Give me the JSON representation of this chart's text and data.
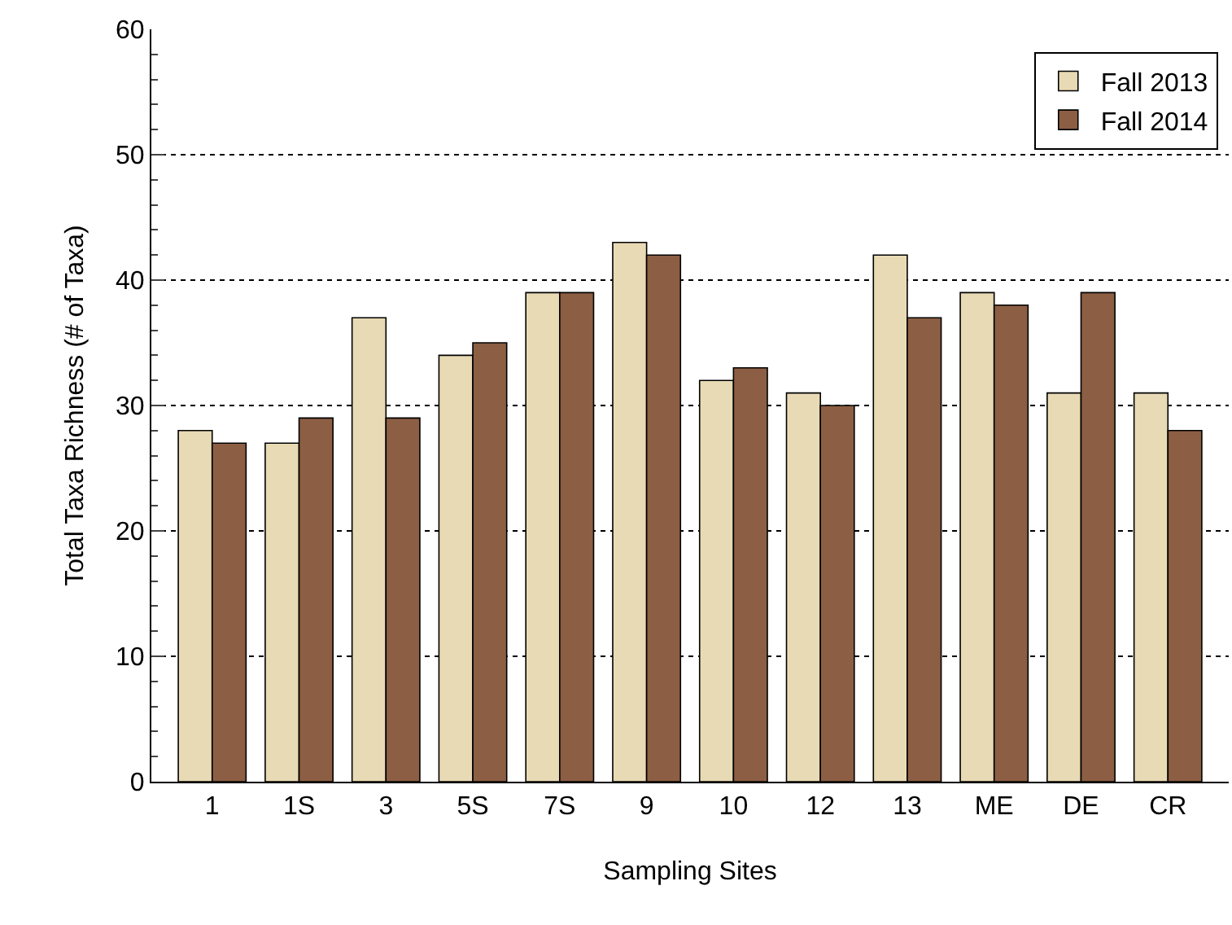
{
  "chart_data": {
    "type": "bar",
    "xlabel": "Sampling Sites",
    "ylabel": "Total Taxa Richness (# of Taxa)",
    "categories": [
      "1",
      "1S",
      "3",
      "5S",
      "7S",
      "9",
      "10",
      "12",
      "13",
      "ME",
      "DE",
      "CR"
    ],
    "series": [
      {
        "name": "Fall 2013",
        "color": "#e8dab4",
        "values": [
          28,
          27,
          37,
          34,
          39,
          43,
          32,
          31,
          42,
          39,
          31,
          31
        ]
      },
      {
        "name": "Fall 2014",
        "color": "#8c5e43",
        "values": [
          27,
          29,
          29,
          35,
          39,
          42,
          33,
          30,
          37,
          38,
          39,
          28
        ]
      }
    ],
    "ylim": [
      0,
      60
    ],
    "yticks": [
      0,
      10,
      20,
      30,
      40,
      50,
      60
    ],
    "grid": "y",
    "legend": "top right"
  }
}
